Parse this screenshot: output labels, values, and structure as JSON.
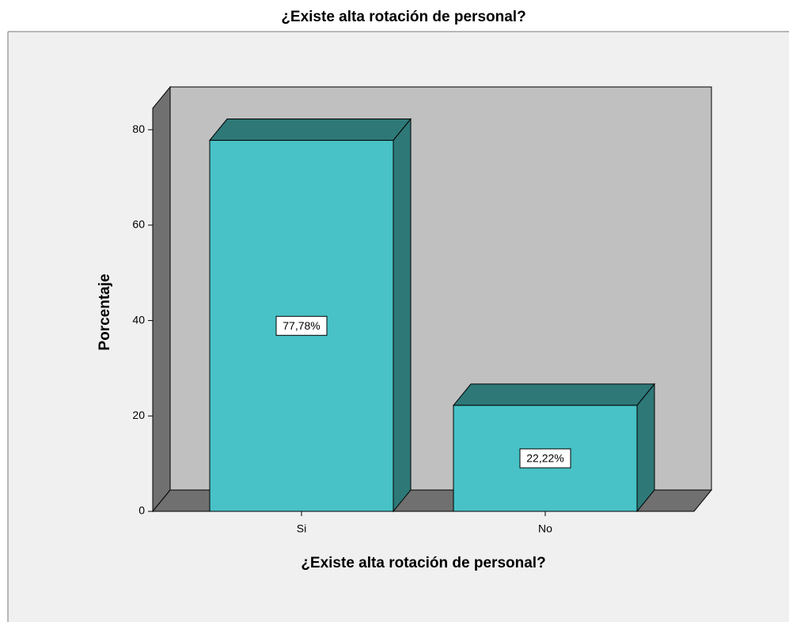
{
  "chart_data": {
    "type": "bar3d",
    "title": "¿Existe alta rotación de personal?",
    "x_label": "¿Existe alta rotación de personal?",
    "y_label": "Porcentaje",
    "categories": [
      "Si",
      "No"
    ],
    "values": [
      77.78,
      22.22
    ],
    "value_labels": [
      "77,78%",
      "22,22%"
    ],
    "color": "#48c2c6",
    "ylim": [
      0,
      84.5
    ],
    "yticks": [
      0,
      20,
      40,
      60,
      80
    ]
  }
}
